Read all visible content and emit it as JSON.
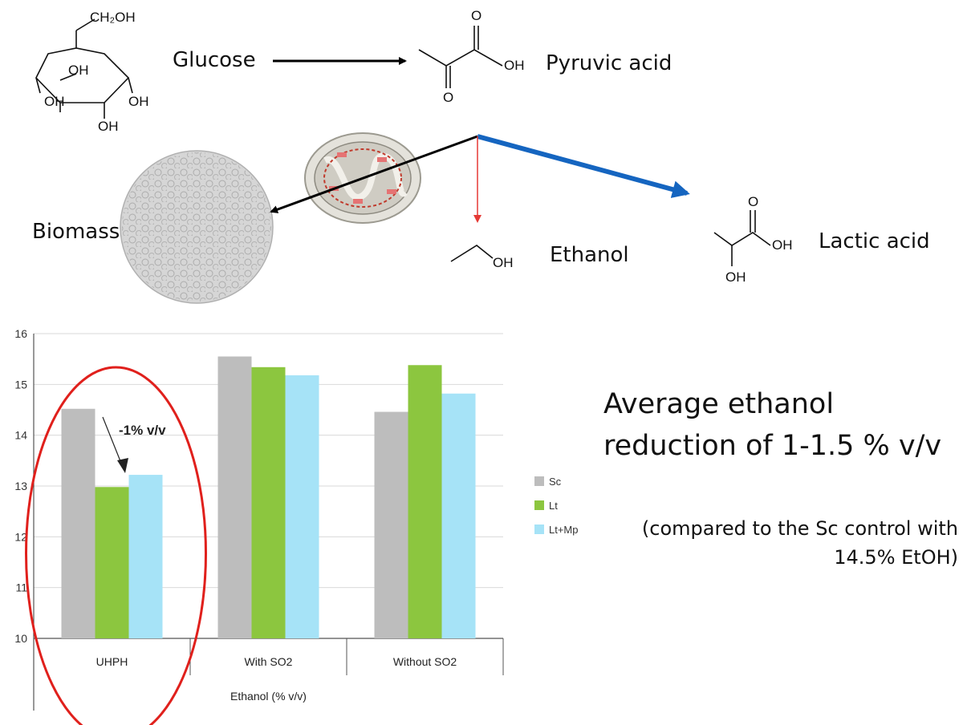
{
  "pathway": {
    "glucose_label": "Glucose",
    "pyruvic_label": "Pyruvic acid",
    "biomass_label": "Biomass",
    "ethanol_label": "Ethanol",
    "lactic_label": "Lactic acid",
    "glucose_groups": {
      "ch2oh": "CH₂OH",
      "oh": "OH"
    },
    "pyruvic_groups": {
      "o": "O",
      "oh": "OH"
    },
    "ethanol_groups": {
      "oh": "OH"
    },
    "lactic_groups": {
      "o": "O",
      "oh": "OH"
    },
    "colors": {
      "black_arrow": "#000000",
      "blue_arrow": "#1565c0",
      "red_arrow": "#e53935"
    }
  },
  "annotation": {
    "arrow_label": "-1% v/v",
    "ellipse_color": "#e0201c"
  },
  "side_text": {
    "headline_line1": "Average ethanol",
    "headline_line2": "reduction of 1-1.5 % v/v",
    "note_line1": "(compared to the Sc control with",
    "note_line2": "14.5% EtOH)"
  },
  "chart_data": {
    "type": "bar",
    "categories": [
      "UHPH",
      "With SO2",
      "Without SO2"
    ],
    "series": [
      {
        "name": "Sc",
        "values": [
          14.52,
          15.55,
          14.46
        ],
        "color": "#bdbdbd"
      },
      {
        "name": "Lt",
        "values": [
          12.98,
          15.34,
          15.38
        ],
        "color": "#8cc63f"
      },
      {
        "name": "Lt+Mp",
        "values": [
          13.22,
          15.18,
          14.82
        ],
        "color": "#a6e3f7"
      }
    ],
    "xlabel": "Ethanol (% v/v)",
    "ylabel": "",
    "ylim": [
      10,
      16
    ],
    "yticks": [
      "10",
      "11",
      "12",
      "13",
      "14",
      "15",
      "16"
    ],
    "grid": true,
    "legend": "right"
  }
}
